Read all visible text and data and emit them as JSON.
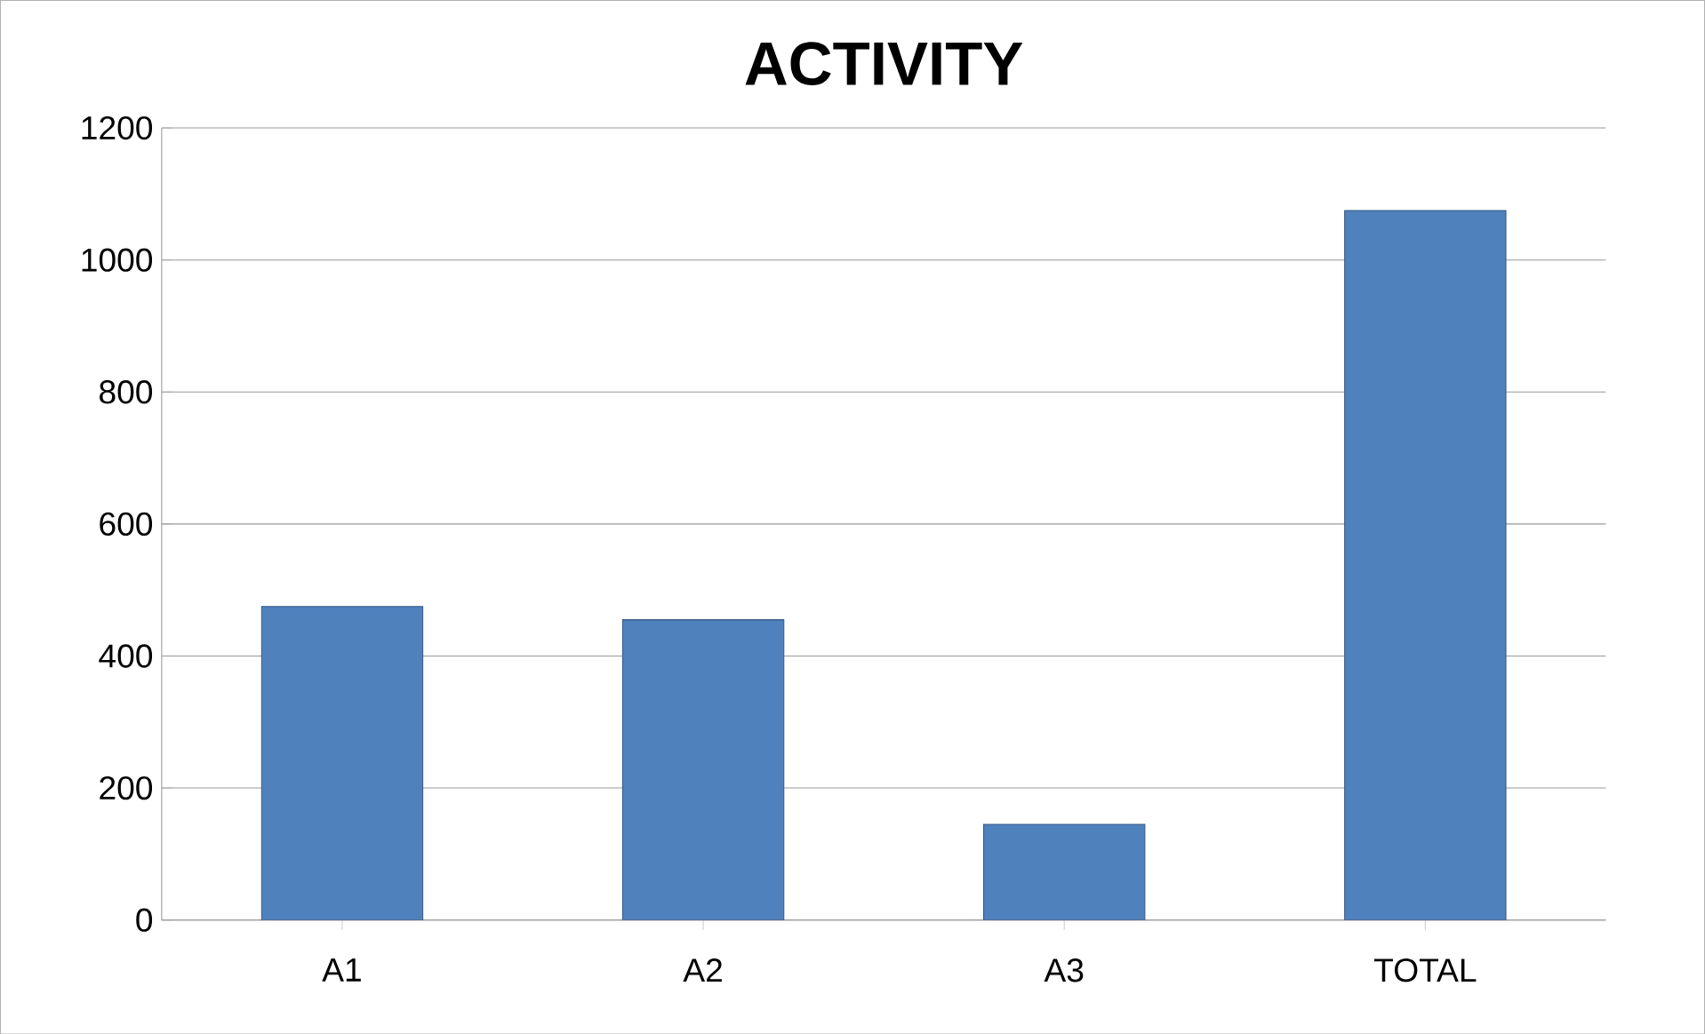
{
  "chart_data": {
    "type": "bar",
    "title": "ACTIVITY",
    "categories": [
      "A1",
      "A2",
      "A3",
      "TOTAL"
    ],
    "values": [
      475,
      455,
      145,
      1075
    ],
    "color": "#4f81bd",
    "ylim": [
      0,
      1200
    ],
    "yticks": [
      0,
      200,
      400,
      600,
      800,
      1000,
      1200
    ],
    "grid": "y"
  }
}
